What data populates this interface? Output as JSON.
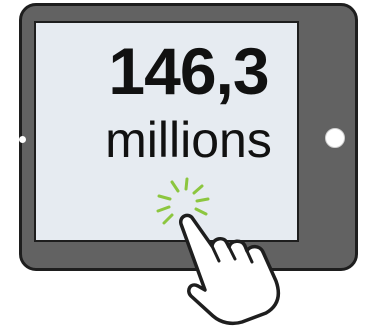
{
  "display": {
    "value": "146,3",
    "unit": "millions"
  },
  "colors": {
    "frame": "#626262",
    "frame_outline": "#1e1e1e",
    "screen": "#e6ebf1",
    "text": "#111111",
    "tap_rays": "#8cc63f",
    "hand_fill": "#ffffff",
    "hand_outline": "#1e1e1e"
  },
  "icons": {
    "tablet": "tablet-device-icon",
    "hand": "pointing-hand-icon",
    "tap": "tap-burst-icon"
  }
}
